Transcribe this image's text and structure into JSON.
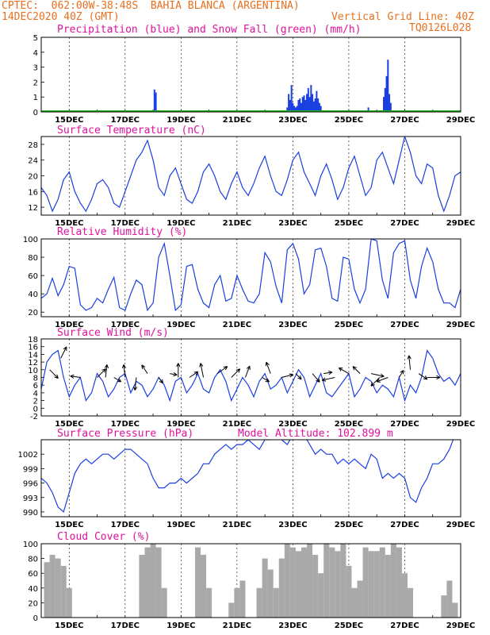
{
  "header": {
    "station": "CPTEC:  062:00W-38:48S  BAHIA BLANCA (ARGENTINA)",
    "run": "14DEC2020 40Z (GMT)",
    "grid_note": "Vertical Grid Line: 40Z",
    "code": "TQ0126L028"
  },
  "colors": {
    "header": "#e8701f",
    "title": "#e0119e",
    "line": "#1a3fe0",
    "snow": "#1fb31f",
    "cloud": "#a9a9a9"
  },
  "chart_data": [
    {
      "id": "precip",
      "type": "bar",
      "title": "Precipitation (blue) and Snow Fall (green) (mm/h)",
      "ylim": [
        0,
        5
      ],
      "yticks": [
        "0",
        "1",
        "2",
        "3",
        "4",
        "5"
      ],
      "xticks": [
        "15DEC",
        "17DEC",
        "19DEC",
        "21DEC",
        "23DEC",
        "25DEC",
        "27DEC",
        "29DEC"
      ],
      "x_days": [
        14.0,
        29.0
      ],
      "series": [
        {
          "color": "blue",
          "points": [
            [
              18.05,
              1.5
            ],
            [
              18.1,
              1.3
            ],
            [
              22.8,
              0.3
            ],
            [
              22.85,
              1.2
            ],
            [
              22.9,
              0.8
            ],
            [
              22.95,
              1.8
            ],
            [
              23.0,
              0.6
            ],
            [
              23.05,
              0.4
            ],
            [
              23.1,
              0.3
            ],
            [
              23.15,
              0.4
            ],
            [
              23.2,
              0.8
            ],
            [
              23.25,
              0.9
            ],
            [
              23.3,
              0.6
            ],
            [
              23.35,
              1.0
            ],
            [
              23.4,
              1.1
            ],
            [
              23.45,
              0.8
            ],
            [
              23.5,
              1.2
            ],
            [
              23.55,
              1.6
            ],
            [
              23.6,
              1.0
            ],
            [
              23.65,
              1.8
            ],
            [
              23.7,
              1.2
            ],
            [
              23.75,
              0.7
            ],
            [
              23.8,
              0.9
            ],
            [
              23.85,
              1.4
            ],
            [
              23.9,
              0.9
            ],
            [
              23.95,
              0.6
            ],
            [
              24.0,
              0.4
            ],
            [
              25.7,
              0.3
            ],
            [
              26.25,
              1.0
            ],
            [
              26.3,
              1.6
            ],
            [
              26.35,
              2.4
            ],
            [
              26.4,
              3.5
            ],
            [
              26.45,
              1.2
            ],
            [
              26.5,
              0.6
            ]
          ]
        },
        {
          "color": "green",
          "points": [
            [
              14.0,
              0.05
            ],
            [
              29.0,
              0.05
            ]
          ]
        }
      ]
    },
    {
      "id": "temp",
      "type": "line",
      "title": "Surface Temperature (nC)",
      "ylim": [
        10,
        30
      ],
      "yticks": [
        "12",
        "16",
        "20",
        "24",
        "28"
      ],
      "xticks": [
        "15DEC",
        "17DEC",
        "19DEC",
        "21DEC",
        "23DEC",
        "25DEC",
        "27DEC",
        "29DEC"
      ],
      "x": [
        14.0,
        14.2,
        14.4,
        14.6,
        14.8,
        15.0,
        15.2,
        15.4,
        15.6,
        15.8,
        16.0,
        16.2,
        16.4,
        16.6,
        16.8,
        17.0,
        17.2,
        17.4,
        17.6,
        17.8,
        18.0,
        18.2,
        18.4,
        18.6,
        18.8,
        19.0,
        19.2,
        19.4,
        19.6,
        19.8,
        20.0,
        20.2,
        20.4,
        20.6,
        20.8,
        21.0,
        21.2,
        21.4,
        21.6,
        21.8,
        22.0,
        22.2,
        22.4,
        22.6,
        22.8,
        23.0,
        23.2,
        23.4,
        23.6,
        23.8,
        24.0,
        24.2,
        24.4,
        24.6,
        24.8,
        25.0,
        25.2,
        25.4,
        25.6,
        25.8,
        26.0,
        26.2,
        26.4,
        26.6,
        26.8,
        27.0,
        27.2,
        27.4,
        27.6,
        27.8,
        28.0,
        28.2,
        28.4,
        28.6,
        28.8,
        29.0
      ],
      "y": [
        17,
        15,
        11,
        14,
        19,
        21,
        16,
        13,
        11,
        14,
        18,
        19,
        17,
        13,
        12,
        16,
        20,
        24,
        26,
        29,
        24,
        17,
        15,
        20,
        22,
        18,
        14,
        13,
        16,
        21,
        23,
        20,
        16,
        14,
        18,
        21,
        17,
        15,
        18,
        22,
        25,
        20,
        16,
        15,
        19,
        24,
        26,
        21,
        18,
        15,
        20,
        23,
        19,
        14,
        17,
        22,
        25,
        20,
        15,
        17,
        24,
        26,
        22,
        18,
        24,
        30,
        26,
        20,
        18,
        23,
        22,
        15,
        11,
        15,
        20,
        21
      ]
    },
    {
      "id": "rh",
      "type": "line",
      "title": "Relative Humidity (%)",
      "ylim": [
        15,
        100
      ],
      "yticks": [
        "20",
        "40",
        "60",
        "80",
        "100"
      ],
      "xticks": [
        "15DEC",
        "17DEC",
        "19DEC",
        "21DEC",
        "23DEC",
        "25DEC",
        "27DEC",
        "29DEC"
      ],
      "x": [
        14.0,
        14.2,
        14.4,
        14.6,
        14.8,
        15.0,
        15.2,
        15.4,
        15.6,
        15.8,
        16.0,
        16.2,
        16.4,
        16.6,
        16.8,
        17.0,
        17.2,
        17.4,
        17.6,
        17.8,
        18.0,
        18.2,
        18.4,
        18.6,
        18.8,
        19.0,
        19.2,
        19.4,
        19.6,
        19.8,
        20.0,
        20.2,
        20.4,
        20.6,
        20.8,
        21.0,
        21.2,
        21.4,
        21.6,
        21.8,
        22.0,
        22.2,
        22.4,
        22.6,
        22.8,
        23.0,
        23.2,
        23.4,
        23.6,
        23.8,
        24.0,
        24.2,
        24.4,
        24.6,
        24.8,
        25.0,
        25.2,
        25.4,
        25.6,
        25.8,
        26.0,
        26.2,
        26.4,
        26.6,
        26.8,
        27.0,
        27.2,
        27.4,
        27.6,
        27.8,
        28.0,
        28.2,
        28.4,
        28.6,
        28.8,
        29.0
      ],
      "y": [
        35,
        40,
        57,
        38,
        50,
        70,
        68,
        28,
        22,
        25,
        35,
        30,
        45,
        58,
        25,
        22,
        40,
        55,
        50,
        22,
        30,
        80,
        95,
        60,
        22,
        28,
        70,
        72,
        45,
        30,
        25,
        50,
        60,
        32,
        35,
        60,
        45,
        32,
        30,
        40,
        85,
        75,
        48,
        30,
        88,
        95,
        78,
        40,
        50,
        88,
        90,
        70,
        35,
        32,
        80,
        78,
        45,
        30,
        45,
        100,
        98,
        55,
        35,
        85,
        95,
        98,
        55,
        35,
        70,
        90,
        75,
        45,
        30,
        30,
        25,
        45
      ]
    },
    {
      "id": "wind",
      "type": "line",
      "title": "Surface Wind (m/s)",
      "ylim": [
        -2,
        18
      ],
      "yticks": [
        "-2",
        "0",
        "2",
        "4",
        "6",
        "8",
        "10",
        "12",
        "14",
        "16",
        "18"
      ],
      "xticks": [
        "15DEC",
        "17DEC",
        "19DEC",
        "21DEC",
        "23DEC",
        "25DEC",
        "27DEC",
        "29DEC"
      ],
      "x": [
        14.0,
        14.2,
        14.4,
        14.6,
        14.8,
        15.0,
        15.2,
        15.4,
        15.6,
        15.8,
        16.0,
        16.2,
        16.4,
        16.6,
        16.8,
        17.0,
        17.2,
        17.4,
        17.6,
        17.8,
        18.0,
        18.2,
        18.4,
        18.6,
        18.8,
        19.0,
        19.2,
        19.4,
        19.6,
        19.8,
        20.0,
        20.2,
        20.4,
        20.6,
        20.8,
        21.0,
        21.2,
        21.4,
        21.6,
        21.8,
        22.0,
        22.2,
        22.4,
        22.6,
        22.8,
        23.0,
        23.2,
        23.4,
        23.6,
        23.8,
        24.0,
        24.2,
        24.4,
        24.6,
        24.8,
        25.0,
        25.2,
        25.4,
        25.6,
        25.8,
        26.0,
        26.2,
        26.4,
        26.6,
        26.8,
        27.0,
        27.2,
        27.4,
        27.6,
        27.8,
        28.0,
        28.2,
        28.4,
        28.6,
        28.8,
        29.0
      ],
      "y": [
        5,
        12,
        14,
        15,
        8,
        3,
        6,
        8,
        2,
        4,
        9,
        7,
        3,
        5,
        8,
        9,
        4,
        7,
        6,
        3,
        5,
        8,
        6,
        2,
        7,
        8,
        4,
        6,
        9,
        5,
        4,
        8,
        10,
        7,
        2,
        5,
        8,
        6,
        3,
        7,
        9,
        5,
        6,
        8,
        4,
        7,
        10,
        8,
        3,
        6,
        9,
        4,
        3,
        5,
        7,
        9,
        3,
        5,
        8,
        7,
        4,
        6,
        5,
        3,
        8,
        2,
        6,
        4,
        8,
        15,
        13,
        9,
        7,
        8,
        6,
        9
      ],
      "arrows": [
        [
          14.3,
          10,
          0.6,
          -0.6
        ],
        [
          14.7,
          13,
          0.4,
          0.8
        ],
        [
          15.4,
          8,
          -0.7,
          0.1
        ],
        [
          16.0,
          8,
          0.6,
          0.6
        ],
        [
          16.3,
          8,
          0.1,
          0.9
        ],
        [
          16.6,
          8,
          0.5,
          -0.3
        ],
        [
          17.0,
          8,
          -0.1,
          0.9
        ],
        [
          17.4,
          8,
          -0.1,
          -0.9
        ],
        [
          17.8,
          9,
          -0.4,
          0.6
        ],
        [
          18.2,
          8,
          0.3,
          -0.4
        ],
        [
          18.6,
          9,
          0.5,
          -0.1
        ],
        [
          18.9,
          8,
          0,
          1
        ],
        [
          19.3,
          8,
          0.6,
          0.4
        ],
        [
          19.8,
          8,
          -0.2,
          1
        ],
        [
          20.3,
          9,
          0.7,
          0.5
        ],
        [
          20.8,
          8,
          0.6,
          0.6
        ],
        [
          21.3,
          8,
          0.3,
          0.8
        ],
        [
          21.9,
          8,
          0.5,
          -0.3
        ],
        [
          22.2,
          9,
          -0.3,
          0.8
        ],
        [
          22.6,
          8,
          0.8,
          0.2
        ],
        [
          23.1,
          9,
          0.4,
          -0.4
        ],
        [
          23.7,
          9,
          0.5,
          -0.6
        ],
        [
          24.1,
          9,
          0.6,
          0.1
        ],
        [
          24.5,
          8,
          -0.9,
          -0.2
        ],
        [
          25.0,
          9,
          -0.7,
          0.4
        ],
        [
          25.4,
          9,
          -0.5,
          0.5
        ],
        [
          25.8,
          9,
          0.9,
          -0.2
        ],
        [
          26.1,
          8,
          -0.6,
          -0.6
        ],
        [
          26.4,
          8,
          -0.8,
          -0.3
        ],
        [
          26.8,
          8,
          0.3,
          0.5
        ],
        [
          27.2,
          10,
          -0.1,
          1
        ],
        [
          27.5,
          9,
          0.6,
          -0.4
        ],
        [
          27.8,
          8,
          0.9,
          0
        ]
      ]
    },
    {
      "id": "press",
      "type": "line",
      "title": "Surface Pressure (hPa)",
      "annotation": "Model Altitude: 102.899 m",
      "ylim": [
        989,
        1005
      ],
      "yticks": [
        "990",
        "993",
        "996",
        "999",
        "1002"
      ],
      "xticks": [
        "15DEC",
        "17DEC",
        "19DEC",
        "21DEC",
        "23DEC",
        "25DEC",
        "27DEC",
        "29DEC"
      ],
      "x": [
        14.0,
        14.2,
        14.4,
        14.6,
        14.8,
        15.0,
        15.2,
        15.4,
        15.6,
        15.8,
        16.0,
        16.2,
        16.4,
        16.6,
        16.8,
        17.0,
        17.2,
        17.4,
        17.6,
        17.8,
        18.0,
        18.2,
        18.4,
        18.6,
        18.8,
        19.0,
        19.2,
        19.4,
        19.6,
        19.8,
        20.0,
        20.2,
        20.4,
        20.6,
        20.8,
        21.0,
        21.2,
        21.4,
        21.6,
        21.8,
        22.0,
        22.2,
        22.4,
        22.6,
        22.8,
        23.0,
        23.2,
        23.4,
        23.6,
        23.8,
        24.0,
        24.2,
        24.4,
        24.6,
        24.8,
        25.0,
        25.2,
        25.4,
        25.6,
        25.8,
        26.0,
        26.2,
        26.4,
        26.6,
        26.8,
        27.0,
        27.2,
        27.4,
        27.6,
        27.8,
        28.0,
        28.2,
        28.4,
        28.6,
        28.8
      ],
      "y": [
        997,
        996,
        994,
        991,
        990,
        994,
        998,
        1000,
        1001,
        1000,
        1001,
        1002,
        1002,
        1001,
        1002,
        1003,
        1003,
        1002,
        1001,
        1000,
        997,
        995,
        995,
        996,
        996,
        997,
        996,
        997,
        998,
        1000,
        1000,
        1002,
        1003,
        1004,
        1003,
        1004,
        1004,
        1005,
        1004,
        1003,
        1005,
        1005,
        1006,
        1005,
        1004,
        1006,
        1006,
        1006,
        1004,
        1002,
        1003,
        1002,
        1002,
        1000,
        1001,
        1000,
        1001,
        1000,
        999,
        1002,
        1001,
        997,
        998,
        997,
        998,
        997,
        993,
        992,
        995,
        997,
        1000,
        1000,
        1001,
        1003,
        1006
      ]
    },
    {
      "id": "cloud",
      "type": "area",
      "title": "Cloud Cover (%)",
      "ylim": [
        0,
        100
      ],
      "yticks": [
        "0",
        "20",
        "40",
        "60",
        "80",
        "100"
      ],
      "xticks": [
        "15DEC",
        "17DEC",
        "19DEC",
        "21DEC",
        "23DEC",
        "25DEC",
        "27DEC",
        "29DEC"
      ],
      "x": [
        14.0,
        14.2,
        14.4,
        14.6,
        14.8,
        15.0,
        15.2,
        15.4,
        15.6,
        15.8,
        16.0,
        16.2,
        16.4,
        16.6,
        16.8,
        17.0,
        17.2,
        17.4,
        17.6,
        17.8,
        18.0,
        18.2,
        18.4,
        18.6,
        18.8,
        19.0,
        19.2,
        19.4,
        19.6,
        19.8,
        20.0,
        20.2,
        20.4,
        20.6,
        20.8,
        21.0,
        21.2,
        21.4,
        21.6,
        21.8,
        22.0,
        22.2,
        22.4,
        22.6,
        22.8,
        23.0,
        23.2,
        23.4,
        23.6,
        23.8,
        24.0,
        24.2,
        24.4,
        24.6,
        24.8,
        25.0,
        25.2,
        25.4,
        25.6,
        25.8,
        26.0,
        26.2,
        26.4,
        26.6,
        26.8,
        27.0,
        27.2,
        27.4,
        27.6,
        27.8,
        28.0,
        28.2,
        28.4,
        28.6,
        28.8,
        29.0
      ],
      "y": [
        0,
        75,
        85,
        80,
        70,
        40,
        0,
        0,
        0,
        0,
        0,
        0,
        0,
        0,
        0,
        0,
        0,
        0,
        85,
        95,
        100,
        95,
        40,
        0,
        0,
        0,
        0,
        0,
        95,
        85,
        40,
        0,
        0,
        0,
        20,
        40,
        50,
        0,
        0,
        40,
        80,
        65,
        40,
        80,
        100,
        95,
        90,
        95,
        100,
        85,
        60,
        100,
        95,
        90,
        100,
        70,
        40,
        50,
        95,
        90,
        90,
        95,
        85,
        100,
        95,
        60,
        40,
        0,
        0,
        0,
        0,
        0,
        30,
        50,
        20,
        0
      ]
    }
  ]
}
